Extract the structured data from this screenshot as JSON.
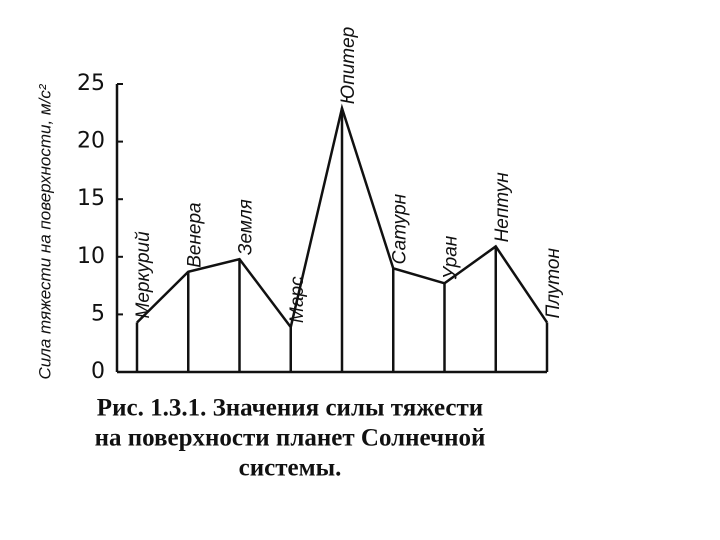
{
  "chart_data": {
    "type": "line",
    "y_label": "Сила тяжести на поверхности, м/с²",
    "categories": [
      "Меркурий",
      "Венера",
      "Земля",
      "Марс",
      "Юпитер",
      "Сатурн",
      "Уран",
      "Нептун",
      "Плутон"
    ],
    "values": [
      4.3,
      8.7,
      9.8,
      3.9,
      22.9,
      9.0,
      7.7,
      10.9,
      4.3
    ],
    "color": "#111111",
    "drop_lines": true,
    "ylim": [
      0,
      25
    ],
    "yticks": [
      0,
      5,
      10,
      15,
      20,
      25
    ],
    "caption": [
      "Рис. 1.3.1. Значения силы тяжести",
      "на поверхности планет Солнечной",
      "системы."
    ]
  }
}
